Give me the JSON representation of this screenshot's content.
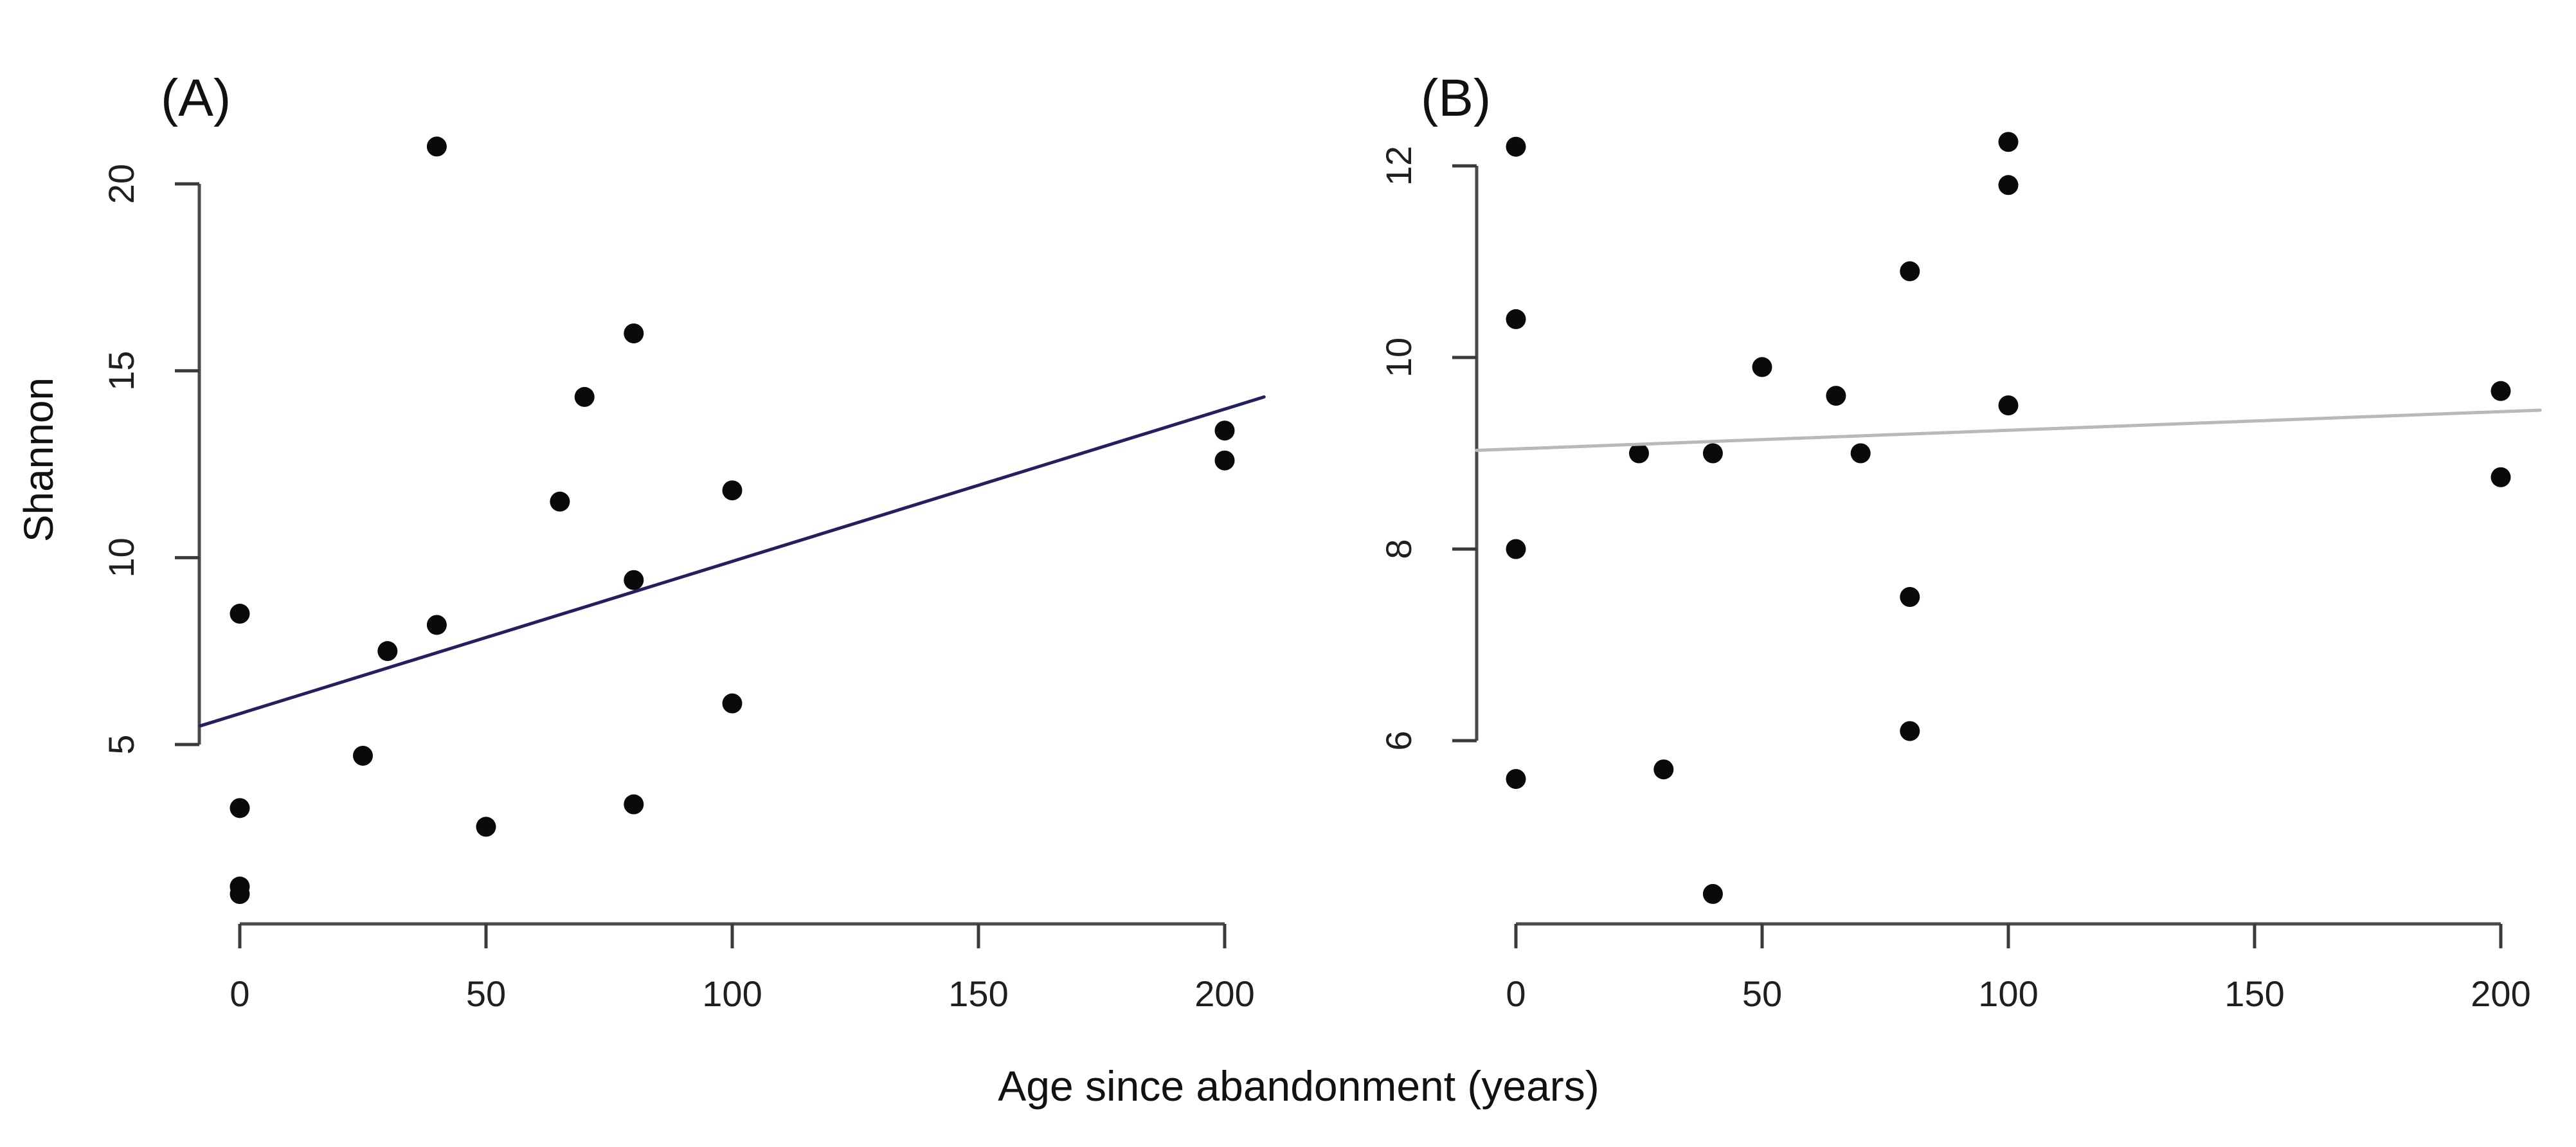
{
  "labels": {
    "panel_a": "(A)",
    "panel_b": "(B)",
    "y_axis": "Shannon",
    "x_axis": "Age since abandonment (years)"
  },
  "colors": {
    "background": "#ffffff",
    "point": "#0a0a0a",
    "axis": "#4a4a4a",
    "tick": "#3a3a3a",
    "trend_a": "#23205f",
    "trend_b": "#b9b9b9",
    "text": "#1f1f1f"
  },
  "chart_data": [
    {
      "type": "scatter",
      "panel_label": "(A)",
      "ylabel": "Shannon",
      "xlabel": "Age since abandonment (years)",
      "x_ticks": [
        0,
        50,
        100,
        150,
        200
      ],
      "y_ticks": [
        5,
        10,
        15,
        20
      ],
      "xlim": [
        -8,
        208
      ],
      "ylim": [
        1.0,
        21.0
      ],
      "grid": false,
      "legend": null,
      "points": [
        [
          0,
          8.5
        ],
        [
          0,
          3.3
        ],
        [
          0,
          1.0
        ],
        [
          0,
          1.2
        ],
        [
          25,
          4.7
        ],
        [
          30,
          7.5
        ],
        [
          40,
          21.0
        ],
        [
          40,
          8.2
        ],
        [
          50,
          2.8
        ],
        [
          65,
          11.5
        ],
        [
          70,
          14.3
        ],
        [
          80,
          16.0
        ],
        [
          80,
          9.4
        ],
        [
          80,
          3.4
        ],
        [
          100,
          11.8
        ],
        [
          100,
          6.1
        ],
        [
          200,
          13.4
        ],
        [
          200,
          12.6
        ]
      ],
      "trend_line": {
        "x1": -8,
        "y1": 5.5,
        "x2": 208,
        "y2": 14.3,
        "color": "#23205f"
      }
    },
    {
      "type": "scatter",
      "panel_label": "(B)",
      "ylabel": "",
      "xlabel": "Age since abandonment (years)",
      "x_ticks": [
        0,
        50,
        100,
        150,
        200
      ],
      "y_ticks": [
        6,
        8,
        10,
        12
      ],
      "xlim": [
        -8,
        208
      ],
      "ylim": [
        4.3,
        12.3
      ],
      "grid": false,
      "legend": null,
      "points": [
        [
          0,
          12.2
        ],
        [
          0,
          10.4
        ],
        [
          0,
          8.0
        ],
        [
          0,
          5.6
        ],
        [
          25,
          9.0
        ],
        [
          30,
          5.7
        ],
        [
          40,
          9.0
        ],
        [
          40,
          4.4
        ],
        [
          50,
          9.9
        ],
        [
          65,
          9.6
        ],
        [
          70,
          9.0
        ],
        [
          80,
          10.9
        ],
        [
          80,
          7.5
        ],
        [
          80,
          6.1
        ],
        [
          100,
          12.25
        ],
        [
          100,
          11.8
        ],
        [
          100,
          9.5
        ],
        [
          200,
          9.65
        ],
        [
          200,
          8.75
        ]
      ],
      "trend_line": {
        "x1": -8,
        "y1": 9.03,
        "x2": 208,
        "y2": 9.45,
        "color": "#b9b9b9"
      }
    }
  ]
}
